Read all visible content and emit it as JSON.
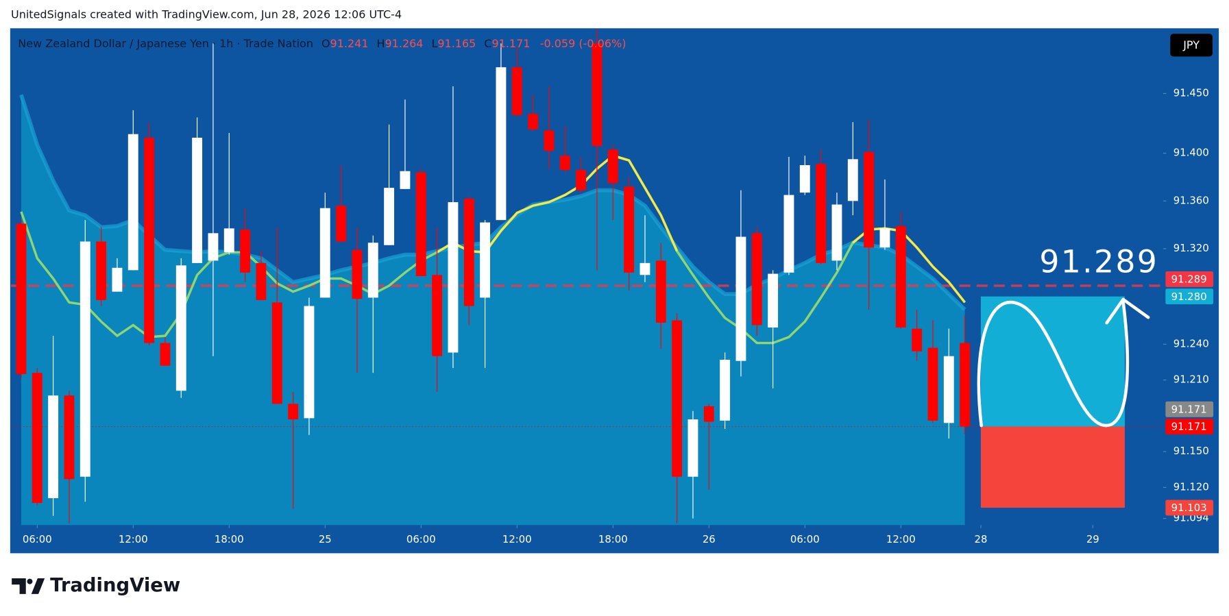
{
  "header": {
    "credit": "UnitedSignals created with TradingView.com, Jun 28, 2026 12:06 UTC-4",
    "symbol": "New Zealand Dollar / Japanese Yen · 1h · Trade Nation",
    "o": "O",
    "h": "H",
    "l": "L",
    "c": "C",
    "change": "-0.059 (-0.06%)",
    "currency": "JPY"
  },
  "footer": {
    "brand": "TradingView"
  },
  "chart_data": {
    "type": "candlestick",
    "up_color": "#ffffff",
    "down_color": "#ff0000",
    "open": [
      91.341,
      91.216,
      91.111,
      91.197,
      91.129,
      91.326,
      91.284,
      91.302,
      91.413,
      91.241,
      91.201,
      91.308,
      91.31,
      91.317,
      91.336,
      91.308,
      91.275,
      91.19,
      91.178,
      91.279,
      91.356,
      91.319,
      91.279,
      91.323,
      91.37,
      91.384,
      91.298,
      91.233,
      91.362,
      91.279,
      91.344,
      91.472,
      91.433,
      91.419,
      91.398,
      91.386,
      91.492,
      91.403,
      91.372,
      91.298,
      91.31,
      91.26,
      91.129,
      91.188,
      91.176,
      91.226,
      91.333,
      91.254,
      91.3,
      91.367,
      91.391,
      91.31,
      91.36,
      91.401,
      91.321,
      91.339,
      91.253,
      91.237,
      91.174,
      91.241
    ],
    "high": [
      91.344,
      91.22,
      91.247,
      91.201,
      91.344,
      91.338,
      91.312,
      91.436,
      91.426,
      91.246,
      91.312,
      91.43,
      91.492,
      91.417,
      91.354,
      91.318,
      91.338,
      91.2,
      91.279,
      91.367,
      91.39,
      91.338,
      91.331,
      91.424,
      91.445,
      91.387,
      91.338,
      91.456,
      91.364,
      91.344,
      91.492,
      91.489,
      91.449,
      91.456,
      91.423,
      91.397,
      91.504,
      91.407,
      91.38,
      91.348,
      91.325,
      91.266,
      91.184,
      91.19,
      91.233,
      91.369,
      91.338,
      91.302,
      91.397,
      91.398,
      91.403,
      91.367,
      91.426,
      91.428,
      91.378,
      91.351,
      91.269,
      91.26,
      91.253,
      91.264
    ],
    "low": [
      91.212,
      91.105,
      91.096,
      91.09,
      91.108,
      91.272,
      91.284,
      91.302,
      91.239,
      91.222,
      91.195,
      91.308,
      91.23,
      91.315,
      91.292,
      91.277,
      91.19,
      91.102,
      91.164,
      91.279,
      91.326,
      91.216,
      91.216,
      91.323,
      91.37,
      91.297,
      91.2,
      91.22,
      91.256,
      91.22,
      91.344,
      91.43,
      91.418,
      91.387,
      91.384,
      91.367,
      91.302,
      91.344,
      91.285,
      91.292,
      91.236,
      91.09,
      91.094,
      91.118,
      91.169,
      91.213,
      91.247,
      91.203,
      91.298,
      91.365,
      91.307,
      91.302,
      91.348,
      91.269,
      91.319,
      91.253,
      91.226,
      91.174,
      91.161,
      91.165
    ],
    "close": [
      91.215,
      91.107,
      91.197,
      91.127,
      91.326,
      91.277,
      91.304,
      91.416,
      91.241,
      91.222,
      91.306,
      91.413,
      91.333,
      91.337,
      91.3,
      91.277,
      91.19,
      91.177,
      91.272,
      91.354,
      91.326,
      91.278,
      91.325,
      91.371,
      91.385,
      91.297,
      91.23,
      91.359,
      91.272,
      91.342,
      91.472,
      91.432,
      91.42,
      91.402,
      91.386,
      91.369,
      91.406,
      91.375,
      91.3,
      91.308,
      91.258,
      91.129,
      91.177,
      91.175,
      91.227,
      91.33,
      91.256,
      91.299,
      91.365,
      91.39,
      91.308,
      91.357,
      91.395,
      91.321,
      91.337,
      91.254,
      91.234,
      91.176,
      91.23,
      91.171
    ],
    "cloud": {
      "color": "#0a86bc",
      "edge_color": "#19a3d6",
      "values": [
        91.449,
        91.407,
        91.377,
        91.352,
        91.348,
        91.338,
        91.339,
        91.344,
        91.331,
        91.319,
        91.318,
        91.317,
        91.318,
        91.317,
        91.315,
        91.312,
        91.302,
        91.292,
        91.295,
        91.298,
        91.302,
        91.305,
        91.308,
        91.312,
        91.315,
        91.315,
        91.318,
        91.321,
        91.323,
        91.325,
        91.338,
        91.348,
        91.357,
        91.359,
        91.361,
        91.364,
        91.369,
        91.369,
        91.365,
        91.356,
        91.338,
        91.321,
        91.305,
        91.292,
        91.282,
        91.282,
        91.29,
        91.295,
        91.302,
        91.308,
        91.315,
        91.319,
        91.325,
        91.323,
        91.321,
        91.315,
        91.305,
        91.295,
        91.282,
        91.269
      ]
    },
    "lines": [
      {
        "color": "#8fd672",
        "values": [
          91.351,
          91.312,
          91.295,
          91.275,
          91.273,
          91.259,
          91.247,
          91.256,
          91.246,
          91.247,
          91.266,
          91.298,
          91.312,
          91.317,
          91.317,
          91.305,
          91.291,
          91.284,
          91.289,
          91.295,
          91.295,
          91.289,
          91.282,
          91.289,
          91.3,
          91.31,
          91.317,
          91.325,
          91.318,
          91.317,
          91.335,
          91.35,
          91.356,
          91.359,
          91.365,
          91.373,
          91.387,
          91.398,
          91.394,
          91.371,
          91.348,
          91.318,
          91.298,
          91.279,
          91.262,
          91.253,
          91.241,
          91.241,
          91.246,
          91.259,
          91.279,
          91.3,
          91.325,
          91.336,
          91.337,
          91.335,
          91.321,
          91.305,
          91.292,
          91.275
        ]
      },
      {
        "color": "#f5e94a",
        "values": [
          null,
          null,
          null,
          null,
          null,
          null,
          null,
          null,
          null,
          null,
          null,
          null,
          null,
          null,
          null,
          null,
          null,
          null,
          null,
          null,
          null,
          null,
          null,
          null,
          null,
          null,
          91.317,
          91.325,
          91.318,
          91.317,
          91.335,
          91.35,
          91.356,
          91.359,
          91.365,
          91.373,
          91.387,
          91.398,
          91.394,
          91.371,
          91.348,
          91.318,
          null,
          null,
          null,
          null,
          null,
          null,
          null,
          null,
          null,
          null,
          91.325,
          91.336,
          91.337,
          91.335,
          91.321,
          91.305,
          91.292,
          91.275
        ]
      }
    ],
    "xlim": [
      -0.64,
      71.4
    ],
    "xticks": [
      {
        "value": 1,
        "label": "06:00"
      },
      {
        "value": 7,
        "label": "12:00"
      },
      {
        "value": 13,
        "label": "18:00"
      },
      {
        "value": 19,
        "label": "25"
      },
      {
        "value": 25,
        "label": "06:00"
      },
      {
        "value": 31,
        "label": "12:00"
      },
      {
        "value": 37,
        "label": "18:00"
      },
      {
        "value": 43,
        "label": "26"
      },
      {
        "value": 49,
        "label": "06:00"
      },
      {
        "value": 55,
        "label": "12:00"
      },
      {
        "value": 60,
        "label": "28"
      },
      {
        "value": 67,
        "label": "29"
      }
    ],
    "ylim": [
      91.0885,
      91.504
    ],
    "yticks": [
      {
        "value": 91.45,
        "label": "91.450"
      },
      {
        "value": 91.4,
        "label": "91.400"
      },
      {
        "value": 91.36,
        "label": "91.360"
      },
      {
        "value": 91.32,
        "label": "91.320"
      },
      {
        "value": 91.24,
        "label": "91.240"
      },
      {
        "value": 91.21,
        "label": "91.210"
      },
      {
        "value": 91.15,
        "label": "91.150"
      },
      {
        "value": 91.12,
        "label": "91.120"
      },
      91.094
    ],
    "grid": false,
    "target_line": {
      "value": 91.289,
      "color": "#f23645"
    },
    "position": {
      "start": 60,
      "end": 69,
      "target": 91.28,
      "entry": 91.171,
      "stop": 91.103,
      "profit_color": "#12aed6",
      "loss_color": "#f4443c"
    },
    "price_labels": [
      {
        "value": 91.289,
        "color": "#f23645"
      },
      {
        "value": 91.28,
        "label": "91.280",
        "color": "#12aed6"
      },
      {
        "value": 91.171,
        "color": "#888888"
      },
      {
        "value": 91.171,
        "color": "#ff0000"
      },
      {
        "value": 91.103,
        "color": "#f4443c"
      }
    ]
  }
}
